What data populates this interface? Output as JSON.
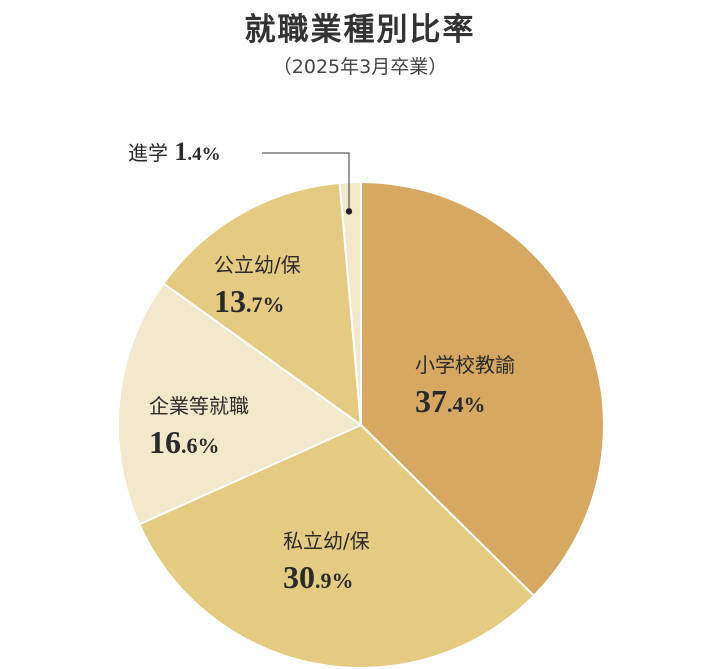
{
  "title": "就職業種別比率",
  "subtitle": "（2025年3月卒業）",
  "colors": {
    "dark": "#d6a862",
    "mid": "#e5cb82",
    "light": "#f3e8cb"
  },
  "chart_data": {
    "type": "pie",
    "title": "就職業種別比率",
    "subtitle": "（2025年3月卒業）",
    "slices": [
      {
        "label": "小学校教諭",
        "int": "37",
        "dec": ".4%",
        "value": 37.4,
        "color": "#d6a862"
      },
      {
        "label": "私立幼/保",
        "int": "30",
        "dec": ".9%",
        "value": 30.9,
        "color": "#e5cb82"
      },
      {
        "label": "企業等就職",
        "int": "16",
        "dec": ".6%",
        "value": 16.6,
        "color": "#f3e8cb"
      },
      {
        "label": "公立幼/保",
        "int": "13",
        "dec": ".7%",
        "value": 13.7,
        "color": "#e5cb82"
      },
      {
        "label": "進学",
        "int": "1",
        "dec": ".4%",
        "value": 1.4,
        "color": "#f3e8cb"
      }
    ]
  }
}
